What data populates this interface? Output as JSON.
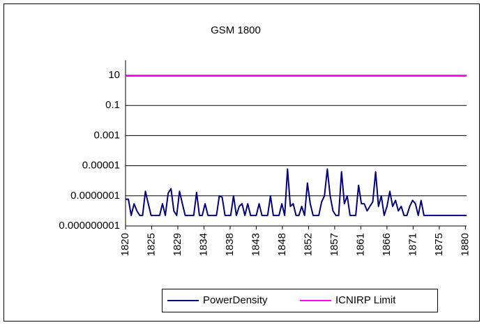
{
  "chart_data": {
    "type": "line",
    "title": "GSM 1800",
    "x": [
      1820,
      1820.5,
      1821,
      1821.5,
      1822,
      1822.5,
      1823,
      1823.5,
      1824,
      1824.5,
      1825,
      1825.5,
      1826,
      1826.5,
      1827,
      1827.5,
      1828,
      1828.5,
      1829,
      1829.5,
      1830,
      1830.5,
      1831,
      1831.5,
      1832,
      1832.5,
      1833,
      1833.5,
      1834,
      1834.5,
      1835,
      1835.5,
      1836,
      1836.5,
      1837,
      1837.5,
      1838,
      1838.5,
      1839,
      1839.5,
      1840,
      1840.5,
      1841,
      1841.5,
      1842,
      1842.5,
      1843,
      1843.5,
      1844,
      1844.5,
      1845,
      1845.5,
      1846,
      1846.5,
      1847,
      1847.5,
      1848,
      1848.5,
      1849,
      1849.5,
      1850,
      1850.5,
      1851,
      1851.5,
      1852,
      1852.5,
      1853,
      1853.5,
      1854,
      1854.5,
      1855,
      1855.5,
      1856,
      1856.5,
      1857,
      1857.5,
      1858,
      1858.5,
      1859,
      1859.5,
      1860,
      1860.5,
      1861,
      1861.5,
      1862,
      1862.5,
      1863,
      1863.5,
      1864,
      1864.5,
      1865,
      1865.5,
      1866,
      1866.5,
      1867,
      1867.5,
      1868,
      1868.5,
      1869,
      1869.5,
      1870,
      1870.5,
      1871,
      1871.5,
      1872,
      1872.5,
      1873,
      1873.5,
      1874,
      1874.5,
      1875,
      1875.5,
      1876,
      1876.5,
      1877,
      1877.5,
      1878,
      1878.5,
      1879,
      1879.5,
      1880
    ],
    "series": [
      {
        "name": "PowerDensity",
        "color": "#000080",
        "values": [
          6e-08,
          6e-08,
          5e-09,
          3e-08,
          1e-08,
          5e-09,
          5e-09,
          2e-07,
          3e-08,
          5e-09,
          5e-09,
          5e-09,
          5e-09,
          3e-08,
          5e-09,
          1.5e-07,
          3e-07,
          1e-08,
          5e-09,
          2e-07,
          3e-08,
          5e-09,
          5e-09,
          5e-09,
          5e-09,
          1.7e-07,
          5e-09,
          5e-09,
          3e-08,
          5e-09,
          5e-09,
          5e-09,
          5e-09,
          1e-07,
          8e-08,
          5e-09,
          5e-09,
          5e-09,
          1e-07,
          5e-09,
          2e-08,
          3e-08,
          5e-09,
          3e-08,
          5e-09,
          5e-09,
          5e-09,
          3e-08,
          5e-09,
          5e-09,
          5e-09,
          1e-07,
          5e-09,
          5e-09,
          5e-09,
          3e-08,
          5e-09,
          6e-06,
          2e-08,
          3e-08,
          5e-09,
          5e-09,
          2e-08,
          5e-09,
          7e-07,
          3e-08,
          5e-09,
          5e-09,
          5e-09,
          4e-08,
          1e-07,
          6e-06,
          1e-07,
          1e-08,
          5e-09,
          5e-09,
          4e-06,
          3e-08,
          1e-07,
          5e-09,
          5e-09,
          5e-09,
          5e-07,
          3e-08,
          3e-08,
          1e-08,
          2e-08,
          4e-08,
          4e-06,
          2e-08,
          1e-07,
          5e-09,
          2e-08,
          2e-07,
          2e-08,
          5e-08,
          1e-08,
          2e-08,
          5e-09,
          5e-09,
          2e-08,
          5e-08,
          3e-08,
          5e-09,
          5e-08,
          5e-09,
          5e-09,
          5e-09,
          5e-09,
          5e-09,
          5e-09,
          5e-09,
          5e-09,
          5e-09,
          5e-09,
          5e-09,
          5e-09,
          5e-09,
          5e-09,
          5e-09,
          5e-09
        ]
      },
      {
        "name": "ICNIRP Limit",
        "color": "#ff00ff",
        "values": [
          9,
          9,
          9,
          9,
          9,
          9,
          9,
          9,
          9,
          9,
          9,
          9,
          9,
          9,
          9,
          9,
          9,
          9,
          9,
          9,
          9,
          9,
          9,
          9,
          9,
          9,
          9,
          9,
          9,
          9,
          9,
          9,
          9,
          9,
          9,
          9,
          9,
          9,
          9,
          9,
          9,
          9,
          9,
          9,
          9,
          9,
          9,
          9,
          9,
          9,
          9,
          9,
          9,
          9,
          9,
          9,
          9,
          9,
          9,
          9,
          9,
          9,
          9,
          9,
          9,
          9,
          9,
          9,
          9,
          9,
          9,
          9,
          9,
          9,
          9,
          9,
          9,
          9,
          9,
          9,
          9,
          9,
          9,
          9,
          9,
          9,
          9,
          9,
          9,
          9,
          9,
          9,
          9,
          9,
          9,
          9,
          9,
          9,
          9,
          9,
          9,
          9,
          9,
          9,
          9,
          9,
          9,
          9,
          9,
          9,
          9,
          9,
          9,
          9,
          9,
          9,
          9,
          9,
          9,
          9,
          9
        ]
      }
    ],
    "xlim": [
      1820,
      1880
    ],
    "xticks": [
      1820,
      {
        "value": 1824.6,
        "label": "1825"
      },
      {
        "value": 1829.2,
        "label": "1829"
      },
      {
        "value": 1833.8,
        "label": "1834"
      },
      {
        "value": 1838.4,
        "label": "1838"
      },
      1843,
      {
        "value": 1847.6,
        "label": "1848"
      },
      {
        "value": 1852.2,
        "label": "1852"
      },
      {
        "value": 1856.8,
        "label": "1857"
      },
      {
        "value": 1861.4,
        "label": "1861"
      },
      1866,
      {
        "value": 1870.6,
        "label": "1871"
      },
      {
        "value": 1875.2,
        "label": "1875"
      },
      {
        "value": 1879.8,
        "label": "1880"
      }
    ],
    "ylim": [
      1e-09,
      100
    ],
    "yscale": "log",
    "yticks": [
      10,
      0.1,
      0.001,
      1e-05,
      {
        "value": 1e-07,
        "label": "0.0000001"
      },
      {
        "value": 1e-09,
        "label": "0.000000001"
      }
    ],
    "grid": true,
    "legend": "bottom"
  }
}
